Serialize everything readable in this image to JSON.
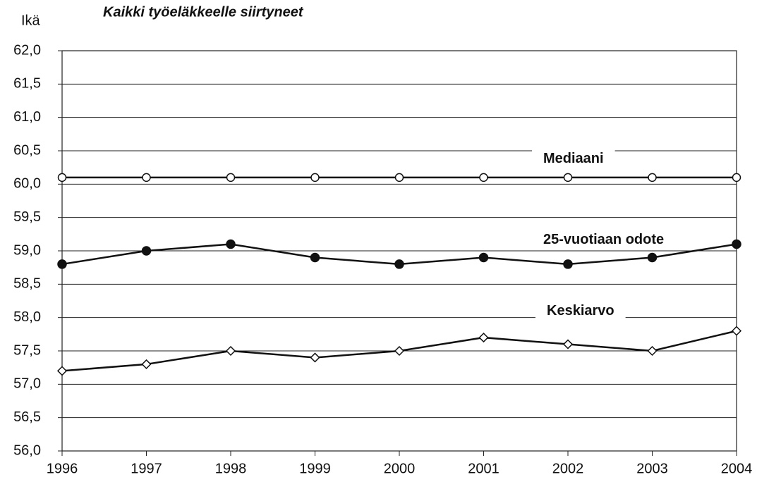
{
  "chart_data": {
    "type": "line",
    "title": "Kaikki työeläkkeelle siirtyneet",
    "y_label": "Ikä",
    "x": [
      1996,
      1997,
      1998,
      1999,
      2000,
      2001,
      2002,
      2003,
      2004
    ],
    "xlim": [
      1996,
      2004
    ],
    "xticks": [
      1996,
      1997,
      1998,
      1999,
      2000,
      2001,
      2002,
      2003,
      2004
    ],
    "ylim": [
      56,
      62
    ],
    "yticks": [
      {
        "value": 56,
        "label": "56,0"
      },
      {
        "value": 56.5,
        "label": "56,5"
      },
      {
        "value": 57,
        "label": "57,0"
      },
      {
        "value": 57.5,
        "label": "57,5"
      },
      {
        "value": 58,
        "label": "58,0"
      },
      {
        "value": 58.5,
        "label": "58,5"
      },
      {
        "value": 59,
        "label": "59,0"
      },
      {
        "value": 59.5,
        "label": "59,5"
      },
      {
        "value": 60,
        "label": "60,0"
      },
      {
        "value": 60.5,
        "label": "60,5"
      },
      {
        "value": 61,
        "label": "61,0"
      },
      {
        "value": 61.5,
        "label": "61,5"
      },
      {
        "value": 62,
        "label": "62,0"
      }
    ],
    "grid": true,
    "series": [
      {
        "name": "Mediaani",
        "color": "#111111",
        "marker": "open-circle",
        "values": [
          60.1,
          60.1,
          60.1,
          60.1,
          60.1,
          60.1,
          60.1,
          60.1,
          60.1
        ]
      },
      {
        "name": "25-vuotiaan odote",
        "color": "#111111",
        "marker": "filled-circle",
        "values": [
          58.8,
          59.0,
          59.1,
          58.9,
          58.8,
          58.9,
          58.8,
          58.9,
          59.1
        ]
      },
      {
        "name": "Keskiarvo",
        "color": "#111111",
        "marker": "open-diamond",
        "values": [
          57.2,
          57.3,
          57.5,
          57.4,
          57.5,
          57.7,
          57.6,
          57.5,
          57.8
        ]
      }
    ]
  }
}
